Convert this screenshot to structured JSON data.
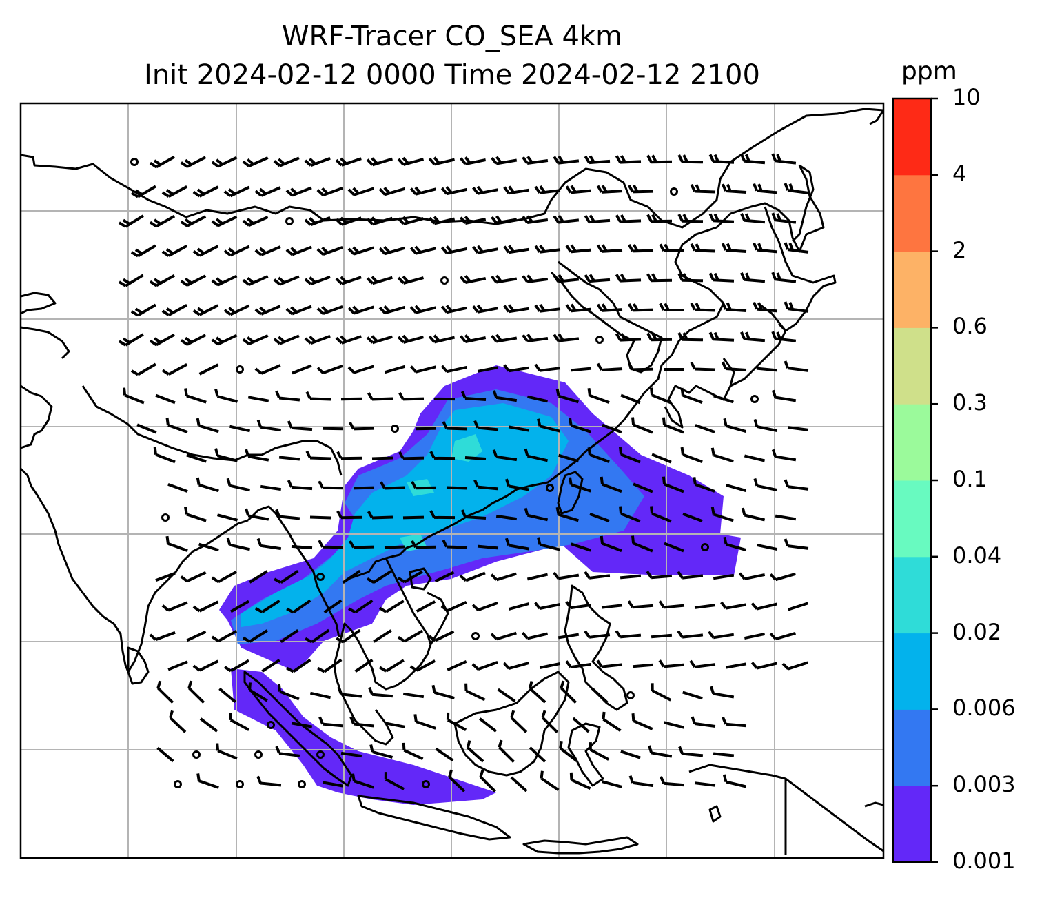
{
  "title_line1": "WRF-Tracer CO_SEA 4km",
  "title_line2": "Init 2024-02-12 0000 Time 2024-02-12 2100",
  "colorbar": {
    "unit": "ppm",
    "tick_labels": [
      "0.001",
      "0.003",
      "0.006",
      "0.02",
      "0.04",
      "0.1",
      "0.3",
      "0.6",
      "2",
      "4",
      "10"
    ],
    "colors": [
      "#6328f8",
      "#3378f2",
      "#03b2ec",
      "#2fdcd8",
      "#68fac0",
      "#9bfa9b",
      "#cfe08a",
      "#fdb266",
      "#fe7540",
      "#fe2a16"
    ]
  },
  "map": {
    "gridlines": true,
    "coastline_color": "#000000",
    "wind_barb_color": "#000000",
    "gridline_color": "#b4b4b4"
  }
}
